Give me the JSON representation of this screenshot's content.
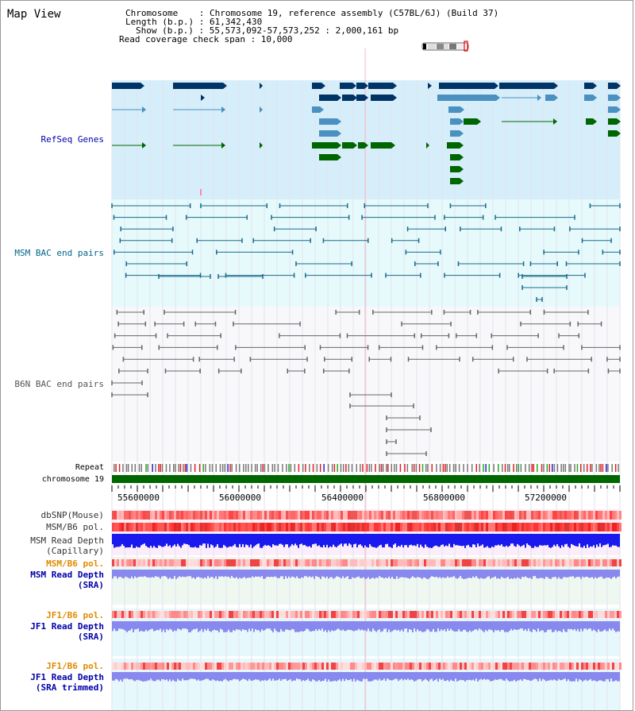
{
  "page_title": "Map View",
  "info": {
    "chromosome_line": "Chromosome    : Chromosome 19, reference assembly (C57BL/6J) (Build 37)",
    "length_line": "Length (b.p.) : 61,342,430",
    "show_line": "Show (b.p.) : 55,573,092-57,573,252 : 2,000,161 bp",
    "coverage_line": "Read coverage check span : 10,000"
  },
  "tracks": {
    "refseq": {
      "label": "RefSeq Genes",
      "color": "#0000aa",
      "bg": "#d6eefa",
      "gene_color": "#003366",
      "mid_color": "#4a90c0",
      "green": "#006600"
    },
    "msm_bac": {
      "label": "MSM BAC end pairs",
      "color": "#006688",
      "bg": "#e6fafc"
    },
    "b6n_bac": {
      "label": "B6N BAC end pairs",
      "color": "#555555",
      "bg": "#f8f8fa"
    },
    "repeat": {
      "label": "Repeat"
    },
    "chromosome": {
      "label": "chromosome 19",
      "color": "#006600"
    },
    "dbsnp": {
      "label": "dbSNP(Mouse)",
      "color": "#000000"
    },
    "msm_b6_pol_1": {
      "label": "MSM/B6 pol.",
      "color": "#000000"
    },
    "msm_depth_cap": {
      "label": "MSM Read Depth",
      "label2": "(Capillary)",
      "color": "#000000"
    },
    "msm_b6_pol_2": {
      "label": "MSM/B6 pol.",
      "color": "#e08a00"
    },
    "msm_depth_sra": {
      "label": "MSM Read Depth",
      "label2": "(SRA)",
      "color": "#0000aa"
    },
    "jf1_b6_pol_1": {
      "label": "JF1/B6 pol.",
      "color": "#e08a00"
    },
    "jf1_depth_sra": {
      "label": "JF1 Read Depth",
      "label2": "(SRA)",
      "color": "#0000aa"
    },
    "jf1_b6_pol_2": {
      "label": "JF1/B6 pol.",
      "color": "#e08a00"
    },
    "jf1_depth_trim": {
      "label": "JF1 Read Depth",
      "label2": "(SRA trimmed)",
      "color": "#0000aa"
    }
  },
  "ruler": {
    "ticks": [
      "55600000",
      "56000000",
      "56400000",
      "56800000",
      "57200000"
    ]
  }
}
